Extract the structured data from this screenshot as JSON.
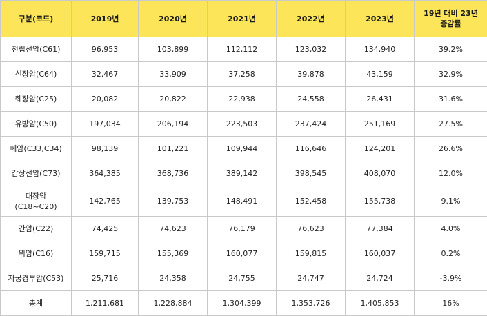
{
  "table": {
    "headers": [
      "구분(코드)",
      "2019년",
      "2020년",
      "2021년",
      "2022년",
      "2023년",
      "19년 대비 23년 증감률"
    ],
    "header_last_lines": [
      "19년 대비 23년",
      "증감률"
    ],
    "rows": [
      {
        "name": "전립선암(C61)",
        "name_lines": [
          "전립선암(C61)"
        ],
        "values": [
          "96,953",
          "103,899",
          "112,112",
          "123,032",
          "134,940",
          "39.2%"
        ]
      },
      {
        "name": "신장암(C64)",
        "name_lines": [
          "신장암(C64)"
        ],
        "values": [
          "32,467",
          "33,909",
          "37,258",
          "39,878",
          "43,159",
          "32.9%"
        ]
      },
      {
        "name": "췌장암(C25)",
        "name_lines": [
          "췌장암(C25)"
        ],
        "values": [
          "20,082",
          "20,822",
          "22,938",
          "24,558",
          "26,431",
          "31.6%"
        ]
      },
      {
        "name": "유방암(C50)",
        "name_lines": [
          "유방암(C50)"
        ],
        "values": [
          "197,034",
          "206,194",
          "223,503",
          "237,424",
          "251,169",
          "27.5%"
        ]
      },
      {
        "name": "폐암(C33,C34)",
        "name_lines": [
          "폐암(C33,C34)"
        ],
        "values": [
          "98,139",
          "101,221",
          "109,944",
          "116,646",
          "124,201",
          "26.6%"
        ]
      },
      {
        "name": "갑상선암(C73)",
        "name_lines": [
          "갑상선암(C73)"
        ],
        "values": [
          "364,385",
          "368,736",
          "389,142",
          "398,545",
          "408,070",
          "12.0%"
        ]
      },
      {
        "name": "대장암 (C18~C20)",
        "name_lines": [
          "대장암",
          "(C18~C20)"
        ],
        "values": [
          "142,765",
          "139,753",
          "148,491",
          "152,458",
          "155,738",
          "9.1%"
        ]
      },
      {
        "name": "간암(C22)",
        "name_lines": [
          "간암(C22)"
        ],
        "values": [
          "74,425",
          "74,623",
          "76,179",
          "76,623",
          "77,384",
          "4.0%"
        ]
      },
      {
        "name": "위암(C16)",
        "name_lines": [
          "위암(C16)"
        ],
        "values": [
          "159,715",
          "155,369",
          "160,077",
          "159,815",
          "160,037",
          "0.2%"
        ]
      },
      {
        "name": "자궁경부암(C53)",
        "name_lines": [
          "자궁경부암(C53)"
        ],
        "values": [
          "25,716",
          "24,358",
          "24,755",
          "24,747",
          "24,724",
          "-3.9%"
        ]
      },
      {
        "name": "총계",
        "name_lines": [
          "총계"
        ],
        "values": [
          "1,211,681",
          "1,228,884",
          "1,304,399",
          "1,353,726",
          "1,405,853",
          "16%"
        ]
      }
    ]
  },
  "colors": {
    "header_bg": "#fde55a",
    "border": "#c9c9c9",
    "text": "#222222"
  }
}
